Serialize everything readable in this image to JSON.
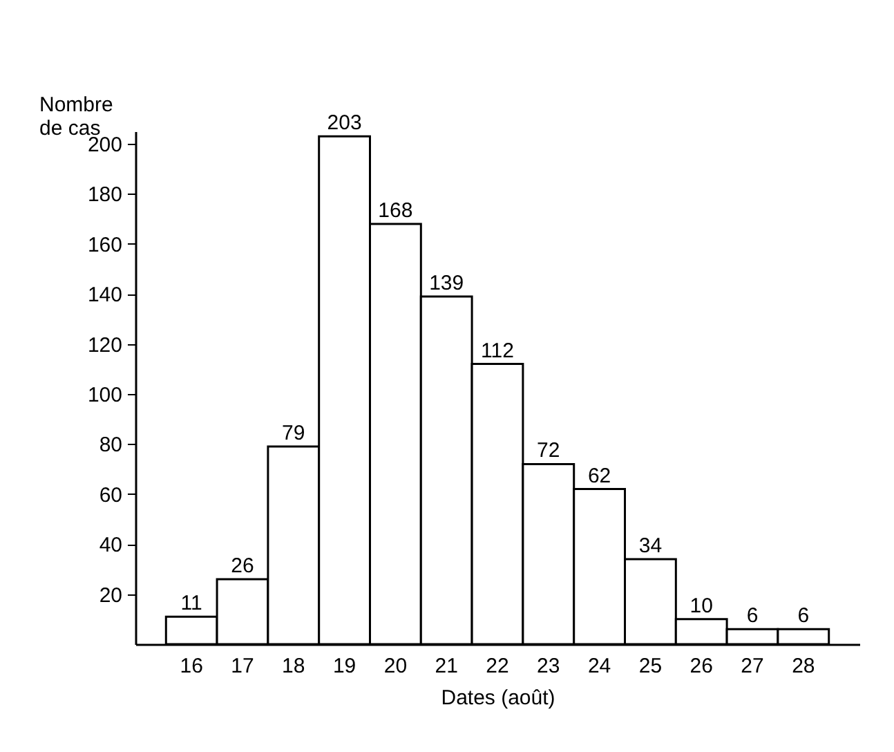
{
  "chart_data": {
    "type": "bar",
    "xlabel": "Dates (août)",
    "ylabel": "Nombre de cas",
    "categories": [
      "16",
      "17",
      "18",
      "19",
      "20",
      "21",
      "22",
      "23",
      "24",
      "25",
      "26",
      "27",
      "28"
    ],
    "values": [
      11,
      26,
      79,
      203,
      168,
      139,
      112,
      72,
      62,
      34,
      10,
      6,
      6
    ],
    "color": "#ffffff",
    "data_labels": true,
    "ylim": [
      0,
      205
    ],
    "yticks": [
      20,
      40,
      60,
      80,
      100,
      120,
      140,
      160,
      180,
      200
    ],
    "grid": false
  }
}
